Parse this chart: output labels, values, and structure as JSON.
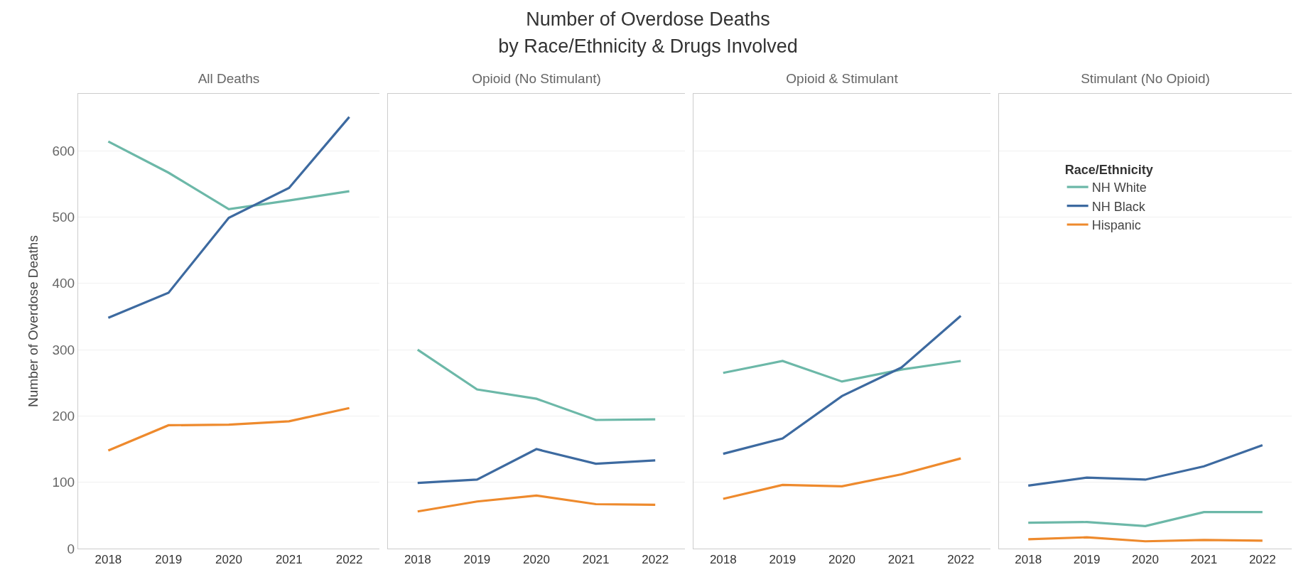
{
  "chart_data": [
    {
      "type": "other",
      "title": "Number of Overdose Deaths\nby Race/Ethnicity & Drugs Involved"
    },
    {
      "type": "line",
      "subtitle": "All Deaths",
      "ylabel": "Number of Overdose Deaths",
      "categories": [
        "2018",
        "2019",
        "2020",
        "2021",
        "2022"
      ],
      "ylim": [
        0,
        686
      ],
      "yticks": [
        0,
        100,
        200,
        300,
        400,
        500,
        600
      ],
      "grid": "y",
      "line_style": "solid",
      "series": [
        {
          "color": "#6cb8a8",
          "values": [
            614,
            567,
            512,
            525,
            539
          ]
        },
        {
          "color": "#3d6aa0",
          "values": [
            348,
            386,
            499,
            544,
            651
          ]
        },
        {
          "color": "#ee8a2d",
          "values": [
            148,
            186,
            187,
            192,
            212
          ]
        }
      ]
    },
    {
      "type": "line",
      "subtitle": "Opioid (No Stimulant)",
      "categories": [
        "2018",
        "2019",
        "2020",
        "2021",
        "2022"
      ],
      "ylim": [
        0,
        686
      ],
      "yticks": [
        0,
        100,
        200,
        300,
        400,
        500,
        600
      ],
      "grid": "y",
      "tick_labels": "x",
      "line_style": "solid",
      "series": [
        {
          "color": "#6cb8a8",
          "values": [
            300,
            240,
            226,
            194,
            195
          ]
        },
        {
          "color": "#3d6aa0",
          "values": [
            99,
            104,
            150,
            128,
            133
          ]
        },
        {
          "color": "#ee8a2d",
          "values": [
            56,
            71,
            80,
            67,
            66
          ]
        }
      ]
    },
    {
      "type": "line",
      "subtitle": "Opioid & Stimulant",
      "categories": [
        "2018",
        "2019",
        "2020",
        "2021",
        "2022"
      ],
      "ylim": [
        0,
        686
      ],
      "yticks": [
        0,
        100,
        200,
        300,
        400,
        500,
        600
      ],
      "grid": "y",
      "tick_labels": "x",
      "line_style": "solid",
      "series": [
        {
          "color": "#6cb8a8",
          "values": [
            265,
            283,
            252,
            270,
            283
          ]
        },
        {
          "color": "#3d6aa0",
          "values": [
            143,
            166,
            230,
            273,
            351
          ]
        },
        {
          "color": "#ee8a2d",
          "values": [
            75,
            96,
            94,
            112,
            136
          ]
        }
      ]
    },
    {
      "type": "line",
      "subtitle": "Stimulant (No Opioid)",
      "categories": [
        "2018",
        "2019",
        "2020",
        "2021",
        "2022"
      ],
      "ylim": [
        0,
        686
      ],
      "yticks": [
        0,
        100,
        200,
        300,
        400,
        500,
        600
      ],
      "grid": "y",
      "tick_labels": "x",
      "line_style": "solid",
      "legend": "top",
      "legend_title": "Race/Ethnicity",
      "series": [
        {
          "name": "NH White",
          "color": "#6cb8a8",
          "values": [
            39,
            40,
            34,
            55,
            55
          ]
        },
        {
          "name": "NH Black",
          "color": "#3d6aa0",
          "values": [
            95,
            107,
            104,
            124,
            156
          ]
        },
        {
          "name": "Hispanic",
          "color": "#ee8a2d",
          "values": [
            14,
            17,
            11,
            13,
            12
          ]
        }
      ]
    }
  ]
}
